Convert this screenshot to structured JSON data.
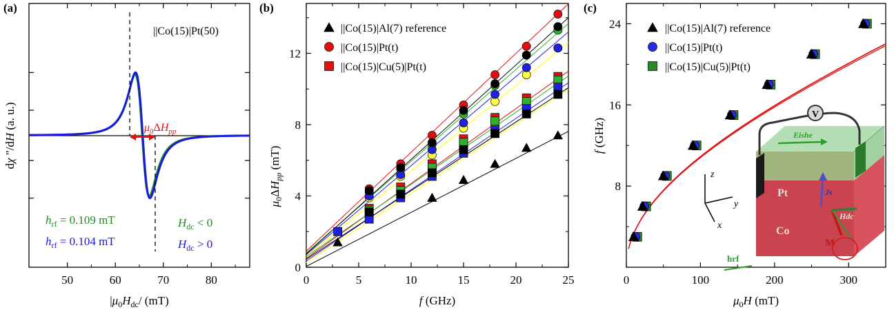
{
  "chart_data": [
    {
      "panel": "(a)",
      "type": "line",
      "xlabel": "|μ0Hdc/ (mT)",
      "ylabel": "dχ\"/dH (a. u.)",
      "xlim": [
        42,
        88
      ],
      "xticks": [
        50,
        60,
        70,
        80
      ],
      "ylim": [
        -1.05,
        1.05
      ],
      "grid": false,
      "legend_text": "||Co(15)|Pt(50)",
      "annotation": "μ0ΔHpp",
      "linewidth_markers": [
        63.0,
        68.3
      ],
      "series": [
        {
          "name": "Hdc < 0",
          "label": "hrf = 0.109 mT",
          "H0": 65.6,
          "dH": 2.55,
          "amplitude": 0.97,
          "color": "#1f8a1f"
        },
        {
          "name": "Hdc > 0",
          "label": "hrf = 0.104 mT",
          "H0": 65.7,
          "dH": 2.6,
          "amplitude": 1.0,
          "color": "#1a1adc"
        }
      ],
      "labels": {
        "hrf_green": "h",
        "hrf_green_sub": "rf",
        "hrf_green_val": " = 0.109 mT",
        "hrf_blue": "h",
        "hrf_blue_sub": "rf",
        "hrf_blue_val": " = 0.104 mT",
        "hdc_neg": "H",
        "hdc_neg_sub": "dc",
        "hdc_neg_val": " < 0",
        "hdc_pos": "H",
        "hdc_pos_sub": "dc",
        "hdc_pos_val": " > 0"
      }
    },
    {
      "panel": "(b)",
      "type": "scatter",
      "xlabel": "f (GHz)",
      "ylabel": "μ0ΔHpp (mT)",
      "xlim": [
        0,
        25
      ],
      "ylim": [
        0,
        14.8
      ],
      "xticks": [
        0,
        5,
        10,
        15,
        20,
        25
      ],
      "yticks": [
        0,
        4,
        8,
        12
      ],
      "x": [
        3,
        6,
        9,
        12,
        15,
        18,
        21,
        24
      ],
      "legend": [
        "||Co(15)|Al(7) reference",
        "||Co(15)|Pt(t)",
        "||Co(15)|Cu(5)|Pt(t)"
      ],
      "series": [
        {
          "name": "||Co(15)|Al(7) reference",
          "marker": "triangle",
          "color": "#000000",
          "values": [
            1.4,
            null,
            null,
            3.9,
            4.9,
            5.8,
            6.7,
            7.4
          ]
        },
        {
          "name": "||Co(15)|Pt(t)",
          "marker": "circle",
          "color": "#e01010",
          "values": [
            null,
            4.4,
            5.8,
            7.4,
            9.1,
            10.8,
            12.4,
            14.2
          ]
        },
        {
          "name": "||Co(15)|Pt(t)",
          "marker": "circle",
          "color": "#ffff40",
          "values": [
            null,
            3.9,
            5.1,
            6.3,
            7.8,
            9.3,
            10.8,
            12.3
          ]
        },
        {
          "name": "||Co(15)|Pt(t)",
          "marker": "circle",
          "color": "#30b030",
          "values": [
            null,
            4.2,
            5.5,
            6.9,
            8.6,
            10.2,
            11.9,
            13.3
          ]
        },
        {
          "name": "||Co(15)|Pt(t)",
          "marker": "circle",
          "color": "#2020e0",
          "values": [
            null,
            4.0,
            5.2,
            6.6,
            8.1,
            9.7,
            11.2,
            12.3
          ]
        },
        {
          "name": "||Co(15)|Pt(t)",
          "marker": "circle",
          "color": "#000000",
          "values": [
            null,
            4.3,
            5.6,
            7.0,
            8.8,
            10.3,
            11.9,
            13.5
          ]
        },
        {
          "name": "||Co(15)|Cu(5)|Pt(t)",
          "marker": "square",
          "color": "#e01010",
          "values": [
            null,
            3.3,
            4.5,
            5.8,
            7.2,
            8.4,
            9.5,
            10.7
          ]
        },
        {
          "name": "||Co(15)|Cu(5)|Pt(t)",
          "marker": "square",
          "color": "#ffff40",
          "values": [
            null,
            3.0,
            4.2,
            5.4,
            6.8,
            8.0,
            9.1,
            10.3
          ]
        },
        {
          "name": "||Co(15)|Cu(5)|Pt(t)",
          "marker": "square",
          "color": "#30b030",
          "values": [
            null,
            3.2,
            4.3,
            5.6,
            7.0,
            8.2,
            9.3,
            10.5
          ]
        },
        {
          "name": "||Co(15)|Cu(5)|Pt(t)",
          "marker": "square",
          "color": "#2020e0",
          "values": [
            2.0,
            2.7,
            3.9,
            5.1,
            6.4,
            7.7,
            8.9,
            10.1
          ]
        },
        {
          "name": "||Co(15)|Cu(5)|Pt(t)",
          "marker": "square",
          "color": "#000000",
          "values": [
            null,
            3.1,
            4.1,
            5.3,
            6.6,
            7.5,
            8.6,
            9.7
          ]
        }
      ],
      "fit_lines": [
        {
          "intercept": 0.05,
          "slope": 0.303,
          "color": "#000000"
        },
        {
          "intercept": 0.9,
          "slope": 0.555,
          "color": "#e01010"
        },
        {
          "intercept": 0.8,
          "slope": 0.515,
          "color": "#30b030"
        },
        {
          "intercept": 0.7,
          "slope": 0.5,
          "color": "#2020e0"
        },
        {
          "intercept": 0.6,
          "slope": 0.48,
          "color": "#ffff40"
        },
        {
          "intercept": 0.75,
          "slope": 0.53,
          "color": "#000000"
        },
        {
          "intercept": 0.5,
          "slope": 0.42,
          "color": "#e01010"
        },
        {
          "intercept": 0.6,
          "slope": 0.405,
          "color": "#30b030"
        },
        {
          "intercept": 0.35,
          "slope": 0.4,
          "color": "#2020e0"
        },
        {
          "intercept": 0.25,
          "slope": 0.39,
          "color": "#ffff40"
        },
        {
          "intercept": 0.45,
          "slope": 0.385,
          "color": "#000000"
        }
      ]
    },
    {
      "panel": "(c)",
      "type": "scatter",
      "xlabel": "μ0H (mT)",
      "ylabel": "f (GHz)",
      "xlim": [
        0,
        350
      ],
      "ylim": [
        0,
        26
      ],
      "xticks": [
        0,
        100,
        200,
        300
      ],
      "yticks": [
        8,
        16,
        24
      ],
      "legend": [
        "||Co(15)|Al(7) reference",
        "||Co(15)|Pt(t)",
        "||Co(15)|Cu(5)|Pt(t)"
      ],
      "x": [
        10,
        22,
        50,
        90,
        140,
        190,
        250,
        320
      ],
      "series": [
        {
          "name": "||Co(15)|Al(7) reference",
          "marker": "triangle",
          "color": "#000000",
          "values": [
            3.0,
            6.0,
            9.0,
            12.0,
            15.0,
            18.0,
            21.0,
            24.0
          ]
        },
        {
          "name": "||Co(15)|Pt(t)",
          "marker": "circle",
          "color": "#2a2ae8",
          "values": [
            3.0,
            6.0,
            9.0,
            12.0,
            15.0,
            18.0,
            21.0,
            24.0
          ]
        },
        {
          "name": "||Co(15)|Cu(5)|Pt(t)",
          "marker": "square",
          "color": "#2a8a2a",
          "values": [
            3.0,
            6.0,
            9.0,
            12.0,
            15.0,
            18.0,
            21.0,
            24.0
          ]
        }
      ],
      "fit": {
        "model": "kittel",
        "color": "#e01010"
      },
      "inset": {
        "labels": [
          "V",
          "Eishe",
          "Pt",
          "Co",
          "Js",
          "Hdc",
          "M",
          "hrf",
          "z",
          "y",
          "x"
        ]
      }
    }
  ]
}
